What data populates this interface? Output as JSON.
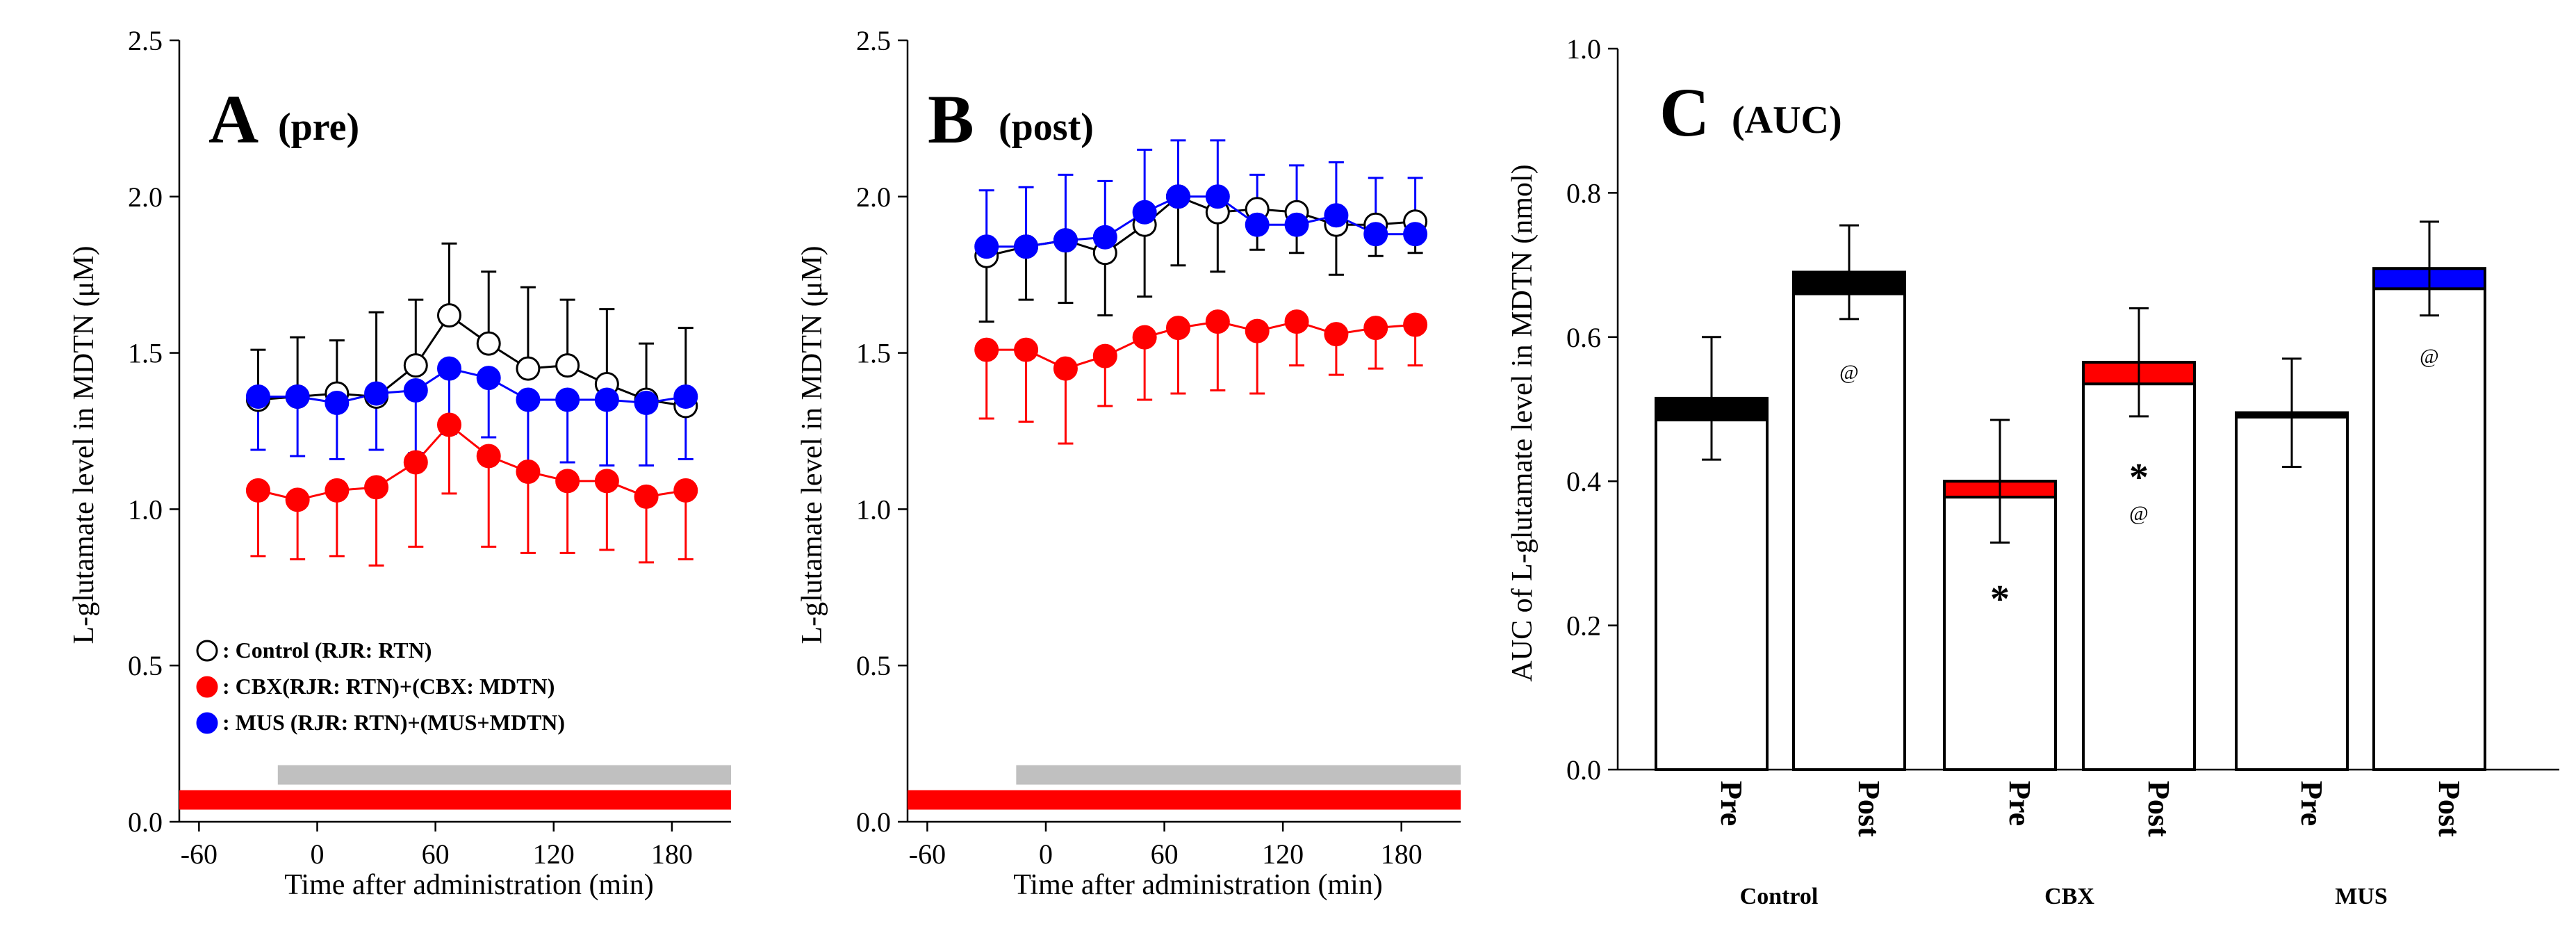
{
  "colors": {
    "control": "#ffffff",
    "cbx": "#ff0000",
    "mus": "#0000ff",
    "bar_gray": "#c0c0c0",
    "bar_red": "#ff0000"
  },
  "chart_data": [
    {
      "id": "A",
      "type": "line",
      "panel_letter": "A",
      "panel_label": "(pre)",
      "xlabel": "Time after administration (min)",
      "ylabel": "L-glutamate level in MDTN (μM)",
      "xlim": [
        -70,
        210
      ],
      "ylim": [
        0,
        2.5
      ],
      "xticks": [
        -60,
        0,
        60,
        120,
        180
      ],
      "xtick_labels": [
        "-60",
        "0",
        "60",
        "120",
        "180"
      ],
      "yticks": [
        0,
        0.5,
        1,
        1.5,
        2,
        2.5
      ],
      "ytick_labels": [
        "0.0",
        "0.5",
        "1.0",
        "1.5",
        "2.0",
        "2.5"
      ],
      "x": [
        -30,
        -10,
        10,
        30,
        50,
        67,
        87,
        107,
        127,
        147,
        167,
        187
      ],
      "series": [
        {
          "name": "Control",
          "values": [
            1.35,
            1.36,
            1.37,
            1.36,
            1.46,
            1.62,
            1.53,
            1.45,
            1.46,
            1.4,
            1.35,
            1.33
          ],
          "errors": [
            0.16,
            0.19,
            0.17,
            0.27,
            0.21,
            0.23,
            0.23,
            0.26,
            0.21,
            0.24,
            0.18,
            0.25
          ],
          "fill": "#ffffff",
          "err_dir": "up",
          "err_color": "#000000"
        },
        {
          "name": "CBX",
          "values": [
            1.06,
            1.03,
            1.06,
            1.07,
            1.15,
            1.27,
            1.17,
            1.12,
            1.09,
            1.09,
            1.04,
            1.06
          ],
          "errors": [
            0.21,
            0.19,
            0.21,
            0.25,
            0.27,
            0.22,
            0.29,
            0.26,
            0.23,
            0.22,
            0.21,
            0.22
          ],
          "fill": "#ff0000",
          "err_dir": "down",
          "err_color": "#ff0000"
        },
        {
          "name": "MUS",
          "values": [
            1.36,
            1.36,
            1.34,
            1.37,
            1.38,
            1.45,
            1.42,
            1.35,
            1.35,
            1.35,
            1.34,
            1.36
          ],
          "errors": [
            0.17,
            0.19,
            0.18,
            0.18,
            0.2,
            0.21,
            0.19,
            0.22,
            0.2,
            0.21,
            0.2,
            0.2
          ],
          "fill": "#0000ff",
          "err_dir": "down",
          "err_color": "#0000ff"
        }
      ],
      "legend": [
        {
          "marker": "#ffffff",
          "label": ": Control (RJR: RTN)"
        },
        {
          "marker": "#ff0000",
          "label": ": CBX(RJR: RTN)+(CBX: MDTN)"
        },
        {
          "marker": "#0000ff",
          "label": ": MUS (RJR: RTN)+(MUS+MDTN)"
        }
      ],
      "bars": [
        {
          "color": "#c0c0c0",
          "x_start": -20,
          "x_end": 210,
          "y": 0.15
        },
        {
          "color": "#ff0000",
          "x_start": -70,
          "x_end": 210,
          "y": 0.07
        }
      ]
    },
    {
      "id": "B",
      "type": "line",
      "panel_letter": "B",
      "panel_label": "(post)",
      "xlabel": "Time after administration (min)",
      "ylabel": "L-glutamate level in MDTN (μM)",
      "xlim": [
        -70,
        210
      ],
      "ylim": [
        0,
        2.5
      ],
      "xticks": [
        -60,
        0,
        60,
        120,
        180
      ],
      "xtick_labels": [
        "-60",
        "0",
        "60",
        "120",
        "180"
      ],
      "yticks": [
        0,
        0.5,
        1,
        1.5,
        2,
        2.5
      ],
      "ytick_labels": [
        "0.0",
        "0.5",
        "1.0",
        "1.5",
        "2.0",
        "2.5"
      ],
      "x": [
        -30,
        -10,
        10,
        30,
        50,
        67,
        87,
        107,
        127,
        147,
        167,
        187
      ],
      "series": [
        {
          "name": "Control",
          "values": [
            1.81,
            1.84,
            1.86,
            1.82,
            1.91,
            2.0,
            1.95,
            1.96,
            1.95,
            1.91,
            1.91,
            1.92
          ],
          "errors": [
            0.21,
            0.17,
            0.2,
            0.2,
            0.23,
            0.22,
            0.19,
            0.13,
            0.13,
            0.16,
            0.1,
            0.1
          ],
          "fill": "#ffffff",
          "err_dir": "down",
          "err_color": "#000000"
        },
        {
          "name": "CBX",
          "values": [
            1.51,
            1.51,
            1.45,
            1.49,
            1.55,
            1.58,
            1.6,
            1.57,
            1.6,
            1.56,
            1.58,
            1.59
          ],
          "errors": [
            0.22,
            0.23,
            0.24,
            0.16,
            0.2,
            0.21,
            0.22,
            0.2,
            0.14,
            0.13,
            0.13,
            0.13
          ],
          "fill": "#ff0000",
          "err_dir": "down",
          "err_color": "#ff0000"
        },
        {
          "name": "MUS",
          "values": [
            1.84,
            1.84,
            1.86,
            1.87,
            1.95,
            2.0,
            2.0,
            1.91,
            1.91,
            1.94,
            1.88,
            1.88
          ],
          "errors": [
            0.18,
            0.19,
            0.21,
            0.18,
            0.2,
            0.18,
            0.18,
            0.16,
            0.19,
            0.17,
            0.18,
            0.18
          ],
          "fill": "#0000ff",
          "err_dir": "up",
          "err_color": "#0000ff"
        }
      ],
      "bars": [
        {
          "color": "#c0c0c0",
          "x_start": -15,
          "x_end": 210,
          "y": 0.15
        },
        {
          "color": "#ff0000",
          "x_start": -70,
          "x_end": 210,
          "y": 0.07
        }
      ]
    },
    {
      "id": "C",
      "type": "bar",
      "panel_letter": "C",
      "panel_label": "(AUC)",
      "ylabel": "AUC of L-glutamate level in MDTN (nmol)",
      "ylim": [
        0,
        1.0
      ],
      "yticks": [
        0,
        0.2,
        0.4,
        0.6,
        0.8,
        1.0
      ],
      "ytick_labels": [
        "0.0",
        "0.2",
        "0.4",
        "0.6",
        "0.8",
        "1.0"
      ],
      "categories": [
        "Pre",
        "Post",
        "Pre",
        "Post",
        "Pre",
        "Post"
      ],
      "groups": [
        "Control",
        "CBX",
        "MUS"
      ],
      "values": [
        0.515,
        0.69,
        0.4,
        0.565,
        0.495,
        0.695
      ],
      "errors": [
        0.085,
        0.065,
        0.085,
        0.075,
        0.075,
        0.065
      ],
      "cap_colors": [
        "#000000",
        "#000000",
        "#ff0000",
        "#ff0000",
        "#000000",
        "#0000ff"
      ],
      "cap_heights": [
        0.03,
        0.03,
        0.022,
        0.03,
        0.006,
        0.028
      ],
      "stars": [
        "",
        "",
        "*",
        "*",
        "",
        ""
      ],
      "ats": [
        "",
        "@",
        "",
        "@",
        "",
        "@"
      ]
    }
  ]
}
